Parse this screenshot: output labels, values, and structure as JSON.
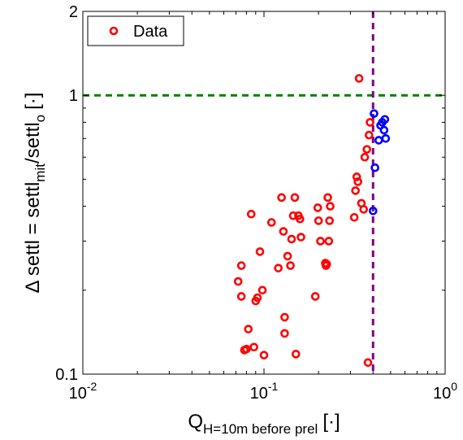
{
  "chart_data": {
    "type": "scatter",
    "xscale": "log",
    "yscale": "log",
    "xlim": [
      0.01,
      1
    ],
    "ylim": [
      0.1,
      2
    ],
    "x_ticks": [
      {
        "value": 0.01,
        "base": "10",
        "exp": "-2"
      },
      {
        "value": 0.1,
        "base": "10",
        "exp": "-1"
      },
      {
        "value": 1,
        "base": "10",
        "exp": "0"
      }
    ],
    "y_ticks": [
      {
        "value": 0.1,
        "label": "0.1"
      },
      {
        "value": 1,
        "label": "1"
      },
      {
        "value": 2,
        "label": "2"
      }
    ],
    "xlabel": {
      "main": "Q",
      "sub": "H=10m before prel",
      "unit": "[·]"
    },
    "ylabel": {
      "pre": "Δ settl = settl",
      "sub1": "mit",
      "mid": "/settl",
      "sub2": "o",
      "unit": "[·]"
    },
    "grid": false,
    "legend": {
      "position": "top-left",
      "entries": [
        {
          "label": "Data",
          "color": "#ff0000"
        }
      ]
    },
    "reference_lines": [
      {
        "orientation": "horizontal",
        "value": 1,
        "style": "dashed",
        "color": "#008000"
      },
      {
        "orientation": "vertical",
        "value": 0.4,
        "style": "dashed",
        "color": "#800080"
      }
    ],
    "series": [
      {
        "name": "Data",
        "color": "#ff0000",
        "points": [
          [
            0.072,
            0.215
          ],
          [
            0.075,
            0.245
          ],
          [
            0.075,
            0.19
          ],
          [
            0.078,
            0.122
          ],
          [
            0.08,
            0.123
          ],
          [
            0.082,
            0.145
          ],
          [
            0.085,
            0.375
          ],
          [
            0.088,
            0.125
          ],
          [
            0.09,
            0.183
          ],
          [
            0.092,
            0.188
          ],
          [
            0.095,
            0.275
          ],
          [
            0.098,
            0.2
          ],
          [
            0.1,
            0.117
          ],
          [
            0.11,
            0.35
          ],
          [
            0.12,
            0.24
          ],
          [
            0.125,
            0.43
          ],
          [
            0.128,
            0.325
          ],
          [
            0.13,
            0.16
          ],
          [
            0.13,
            0.14
          ],
          [
            0.135,
            0.265
          ],
          [
            0.14,
            0.245
          ],
          [
            0.142,
            0.305
          ],
          [
            0.145,
            0.37
          ],
          [
            0.148,
            0.43
          ],
          [
            0.15,
            0.118
          ],
          [
            0.155,
            0.37
          ],
          [
            0.158,
            0.36
          ],
          [
            0.16,
            0.31
          ],
          [
            0.192,
            0.19
          ],
          [
            0.198,
            0.395
          ],
          [
            0.2,
            0.355
          ],
          [
            0.205,
            0.3
          ],
          [
            0.218,
            0.25
          ],
          [
            0.22,
            0.245
          ],
          [
            0.222,
            0.248
          ],
          [
            0.225,
            0.43
          ],
          [
            0.228,
            0.3
          ],
          [
            0.23,
            0.355
          ],
          [
            0.232,
            0.4
          ],
          [
            0.315,
            0.365
          ],
          [
            0.32,
            0.455
          ],
          [
            0.325,
            0.51
          ],
          [
            0.33,
            0.49
          ],
          [
            0.335,
            1.15
          ],
          [
            0.345,
            0.41
          ],
          [
            0.355,
            0.39
          ],
          [
            0.36,
            0.6
          ],
          [
            0.37,
            0.64
          ],
          [
            0.375,
            0.11
          ],
          [
            0.38,
            0.72
          ],
          [
            0.385,
            0.8
          ]
        ]
      },
      {
        "name": "",
        "color": "#0000ff",
        "points": [
          [
            0.4,
            0.385
          ],
          [
            0.41,
            0.55
          ],
          [
            0.405,
            0.86
          ],
          [
            0.43,
            0.69
          ],
          [
            0.44,
            0.78
          ],
          [
            0.45,
            0.8
          ],
          [
            0.46,
            0.75
          ],
          [
            0.465,
            0.82
          ],
          [
            0.47,
            0.7
          ]
        ]
      }
    ]
  }
}
